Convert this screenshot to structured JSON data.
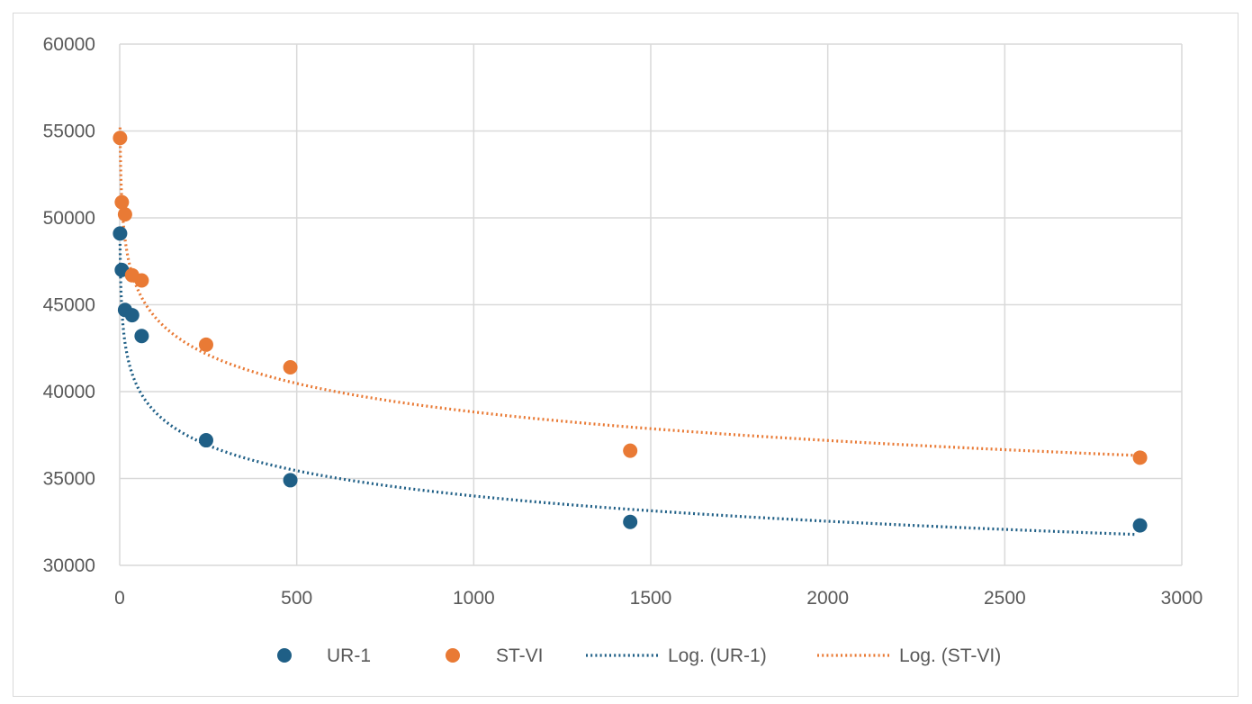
{
  "chart_data": {
    "type": "scatter",
    "title": "",
    "xlabel": "",
    "ylabel": "",
    "xlim": [
      0,
      3000
    ],
    "ylim": [
      30000,
      60000
    ],
    "x_ticks": [
      0,
      500,
      1000,
      1500,
      2000,
      2500,
      3000
    ],
    "y_ticks": [
      30000,
      35000,
      40000,
      45000,
      50000,
      55000,
      60000
    ],
    "x_tick_labels": [
      "0",
      "500",
      "1000",
      "1500",
      "2000",
      "2500",
      "3000"
    ],
    "y_tick_labels": [
      "30000",
      "35000",
      "40000",
      "45000",
      "50000",
      "55000",
      "60000"
    ],
    "grid": true,
    "legend_position": "bottom",
    "series": [
      {
        "name": "UR-1",
        "color": "#1f5f86",
        "x": [
          1,
          6,
          15,
          35,
          62,
          244,
          482,
          1442,
          2882
        ],
        "y": [
          49100,
          47000,
          44700,
          44400,
          43200,
          37200,
          34900,
          32500,
          32300
        ]
      },
      {
        "name": "ST-VI",
        "color": "#e97a35",
        "x": [
          1,
          6,
          15,
          35,
          62,
          244,
          482,
          1442,
          2882
        ],
        "y": [
          54600,
          50900,
          50200,
          46700,
          46400,
          42700,
          41400,
          36600,
          36200
        ]
      }
    ],
    "trendlines": [
      {
        "name": "Log. (UR-1)",
        "type": "logarithmic",
        "series": "UR-1",
        "color": "#1f5f86",
        "x_range": [
          1,
          2870
        ],
        "coef_a": -2100,
        "coef_b": 48500
      },
      {
        "name": "Log. (ST-VI)",
        "type": "logarithmic",
        "series": "ST-VI",
        "color": "#e97a35",
        "x_range": [
          1,
          2870
        ],
        "coef_a": -2370,
        "coef_b": 55200
      }
    ],
    "legend": [
      "UR-1",
      "ST-VI",
      "Log. (UR-1)",
      "Log. (ST-VI)"
    ]
  }
}
